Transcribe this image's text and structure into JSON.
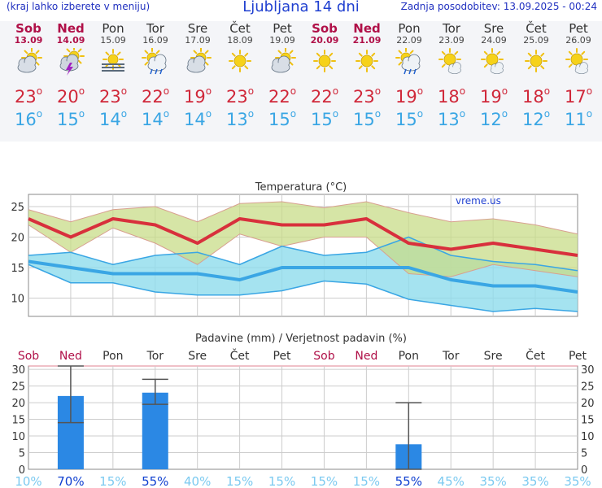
{
  "header": {
    "menu_hint": "(kraj lahko izberete v meniju)",
    "title": "Ljubljana 14 dni",
    "last_update": "Zadnja posodobitev: 13.09.2025 - 00:24"
  },
  "days": [
    {
      "name": "Sob",
      "date": "13.09",
      "weekend": true,
      "icon": "partly-cloudy-icon",
      "tmax": "23",
      "tmin": "16"
    },
    {
      "name": "Ned",
      "date": "14.09",
      "weekend": true,
      "icon": "thunderstorm-icon",
      "tmax": "20",
      "tmin": "15"
    },
    {
      "name": "Pon",
      "date": "15.09",
      "weekend": false,
      "icon": "fog-icon",
      "tmax": "23",
      "tmin": "14"
    },
    {
      "name": "Tor",
      "date": "16.09",
      "weekend": false,
      "icon": "sun-cloud-rain-icon",
      "tmax": "22",
      "tmin": "14"
    },
    {
      "name": "Sre",
      "date": "17.09",
      "weekend": false,
      "icon": "partly-cloudy-icon",
      "tmax": "19",
      "tmin": "14"
    },
    {
      "name": "Čet",
      "date": "18.09",
      "weekend": false,
      "icon": "sunny-icon",
      "tmax": "23",
      "tmin": "13"
    },
    {
      "name": "Pet",
      "date": "19.09",
      "weekend": false,
      "icon": "partly-cloudy-icon",
      "tmax": "22",
      "tmin": "15"
    },
    {
      "name": "Sob",
      "date": "20.09",
      "weekend": true,
      "icon": "sunny-icon",
      "tmax": "22",
      "tmin": "15"
    },
    {
      "name": "Ned",
      "date": "21.09",
      "weekend": true,
      "icon": "sunny-icon",
      "tmax": "23",
      "tmin": "15"
    },
    {
      "name": "Pon",
      "date": "22.09",
      "weekend": false,
      "icon": "sun-cloud-rain-icon",
      "tmax": "19",
      "tmin": "15"
    },
    {
      "name": "Tor",
      "date": "23.09",
      "weekend": false,
      "icon": "sun-small-cloud-icon",
      "tmax": "18",
      "tmin": "13"
    },
    {
      "name": "Sre",
      "date": "24.09",
      "weekend": false,
      "icon": "sun-small-cloud-icon",
      "tmax": "19",
      "tmin": "12"
    },
    {
      "name": "Čet",
      "date": "25.09",
      "weekend": false,
      "icon": "sunny-icon",
      "tmax": "18",
      "tmin": "12"
    },
    {
      "name": "Pet",
      "date": "26.09",
      "weekend": false,
      "icon": "sun-small-cloud-icon",
      "tmax": "17",
      "tmin": "11"
    }
  ],
  "colors": {
    "max_line": "#d8303c",
    "min_line": "#3aa6e4",
    "max_band": "#c8dc88",
    "min_band": "#8fdcec",
    "overlap": "#7cd08c",
    "bar": "#2b88e4",
    "weekend": "#b01048",
    "prob_high": "#1040d0",
    "prob_low": "#7ccaf0"
  },
  "chart_data": [
    {
      "type": "line",
      "title": "Temperatura (°C)",
      "watermark": "vreme.us",
      "x": [
        "13.09",
        "14.09",
        "15.09",
        "16.09",
        "17.09",
        "18.09",
        "19.09",
        "20.09",
        "21.09",
        "22.09",
        "23.09",
        "24.09",
        "25.09",
        "26.09"
      ],
      "ylim": [
        7,
        27
      ],
      "yticks": [
        10,
        15,
        20,
        25
      ],
      "series": [
        {
          "name": "Tmax",
          "values": [
            23,
            20,
            23,
            22,
            19,
            23,
            22,
            22,
            23,
            19,
            18,
            19,
            18,
            17
          ]
        },
        {
          "name": "Tmin",
          "values": [
            16,
            15,
            14,
            14,
            14,
            13,
            15,
            15,
            15,
            15,
            13,
            12,
            12,
            11
          ]
        },
        {
          "name": "Tmax high",
          "values": [
            24.5,
            22.5,
            24.5,
            25,
            22.5,
            25.5,
            25.8,
            24.8,
            25.8,
            24,
            22.5,
            23,
            22,
            20.5
          ]
        },
        {
          "name": "Tmax low",
          "values": [
            22,
            17.5,
            21.5,
            19,
            15.5,
            20.5,
            18.5,
            20,
            20,
            14,
            13.5,
            15.5,
            14.5,
            13.5
          ]
        },
        {
          "name": "Tmin high",
          "values": [
            17,
            17.5,
            15.5,
            17,
            17.5,
            15.5,
            18.5,
            17,
            17.5,
            20,
            17,
            16,
            15.5,
            14.5
          ]
        },
        {
          "name": "Tmin low",
          "values": [
            15.5,
            12.5,
            12.5,
            11,
            10.5,
            10.5,
            11.2,
            12.8,
            12.3,
            9.8,
            8.8,
            7.8,
            8.3,
            7.8
          ]
        }
      ]
    },
    {
      "type": "bar",
      "title": "Padavine (mm) / Verjetnost padavin (%)",
      "categories": [
        "Sob",
        "Ned",
        "Pon",
        "Tor",
        "Sre",
        "Čet",
        "Pet",
        "Sob",
        "Ned",
        "Pon",
        "Tor",
        "Sre",
        "Čet",
        "Pet"
      ],
      "weekend": [
        true,
        true,
        false,
        false,
        false,
        false,
        false,
        true,
        true,
        false,
        false,
        false,
        false,
        false
      ],
      "values": [
        0,
        22,
        0,
        23,
        0,
        0,
        0,
        0,
        0,
        7.5,
        0,
        0,
        0,
        0
      ],
      "error_low": [
        null,
        14,
        null,
        19.5,
        null,
        null,
        null,
        null,
        null,
        0,
        null,
        null,
        null,
        null
      ],
      "error_high": [
        null,
        31,
        null,
        27,
        null,
        null,
        null,
        null,
        null,
        20,
        null,
        null,
        null,
        null
      ],
      "probability": [
        "10%",
        "70%",
        "15%",
        "55%",
        "40%",
        "15%",
        "15%",
        "15%",
        "15%",
        "55%",
        "45%",
        "35%",
        "35%",
        "35%"
      ],
      "ylim": [
        0,
        31
      ],
      "yticks": [
        0,
        5,
        10,
        15,
        20,
        25,
        30
      ]
    }
  ]
}
